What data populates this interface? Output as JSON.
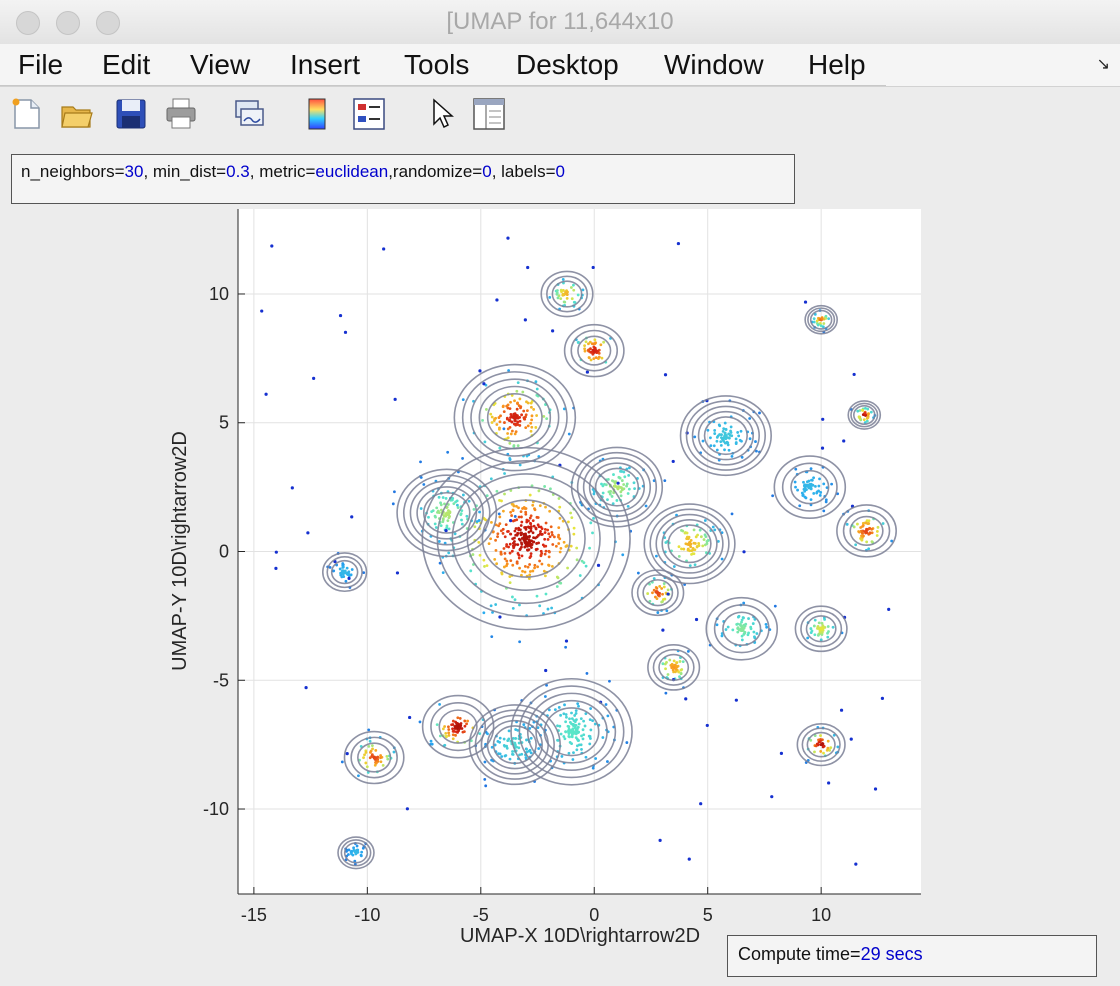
{
  "window": {
    "title": "[UMAP for 11,644x10"
  },
  "menu": [
    "File",
    "Edit",
    "View",
    "Insert",
    "Tools",
    "Desktop",
    "Window",
    "Help"
  ],
  "toolbar": {
    "icons": [
      "new-figure-icon",
      "open-file-icon",
      "save-icon",
      "print-icon",
      "link-plot-icon",
      "colorbar-icon",
      "legend-icon",
      "pointer-icon",
      "property-editor-icon"
    ]
  },
  "params": {
    "n_neighbors_label": "n_neighbors=",
    "n_neighbors": "30",
    "min_dist_label": ", min_dist=",
    "min_dist": "0.3",
    "metric_label": ", metric=",
    "metric": "euclidean",
    "randomize_label": ",randomize=",
    "randomize": "0",
    "labels_label": ", labels=",
    "labels": "0"
  },
  "compute": {
    "label": "Compute time=",
    "value": "29 secs"
  },
  "chart_data": {
    "type": "scatter",
    "xlabel": "UMAP-X  10D\\rightarrow2D",
    "ylabel": "UMAP-Y  10D\\rightarrow2D",
    "xlim": [
      -15.7,
      14.4
    ],
    "ylim": [
      -13.3,
      13.3
    ],
    "xticks": [
      -15,
      -10,
      -5,
      0,
      5,
      10
    ],
    "yticks": [
      -10,
      -5,
      0,
      5,
      10
    ],
    "grid": true,
    "colormap": "density (blue low → red high)",
    "contour_color": "#7a7f95",
    "clusters": [
      {
        "x": -3,
        "y": 0.5,
        "r": 4.5,
        "density": 0.95
      },
      {
        "x": -3.5,
        "y": 5.2,
        "r": 2.5,
        "density": 0.9
      },
      {
        "x": -6.5,
        "y": 1.5,
        "r": 2.0,
        "density": 0.55
      },
      {
        "x": -6,
        "y": -6.8,
        "r": 1.5,
        "density": 0.95
      },
      {
        "x": -9.7,
        "y": -8,
        "r": 1.2,
        "density": 0.85
      },
      {
        "x": -1,
        "y": -7,
        "r": 2.5,
        "density": 0.45
      },
      {
        "x": -3.5,
        "y": -7.5,
        "r": 1.8,
        "density": 0.4
      },
      {
        "x": 0,
        "y": 7.8,
        "r": 1.2,
        "density": 0.9
      },
      {
        "x": -1.2,
        "y": 10,
        "r": 1.0,
        "density": 0.7
      },
      {
        "x": 1,
        "y": 2.5,
        "r": 1.8,
        "density": 0.55
      },
      {
        "x": 4.2,
        "y": 0.3,
        "r": 1.8,
        "density": 0.7
      },
      {
        "x": 2.8,
        "y": -1.6,
        "r": 1.0,
        "density": 0.85
      },
      {
        "x": 3.5,
        "y": -4.5,
        "r": 1.0,
        "density": 0.75
      },
      {
        "x": 6.5,
        "y": -3,
        "r": 1.5,
        "density": 0.5
      },
      {
        "x": 5.8,
        "y": 4.5,
        "r": 1.8,
        "density": 0.35
      },
      {
        "x": 9.5,
        "y": 2.5,
        "r": 1.5,
        "density": 0.3
      },
      {
        "x": 12,
        "y": 0.8,
        "r": 1.2,
        "density": 0.85
      },
      {
        "x": 10,
        "y": -3,
        "r": 1.0,
        "density": 0.6
      },
      {
        "x": 10,
        "y": -7.5,
        "r": 0.9,
        "density": 0.95
      },
      {
        "x": 10,
        "y": 9,
        "r": 0.5,
        "density": 0.8
      },
      {
        "x": 11.9,
        "y": 5.3,
        "r": 0.5,
        "density": 0.95
      },
      {
        "x": -10.5,
        "y": -11.7,
        "r": 0.6,
        "density": 0.3
      },
      {
        "x": -11,
        "y": -0.8,
        "r": 0.8,
        "density": 0.3
      }
    ]
  }
}
